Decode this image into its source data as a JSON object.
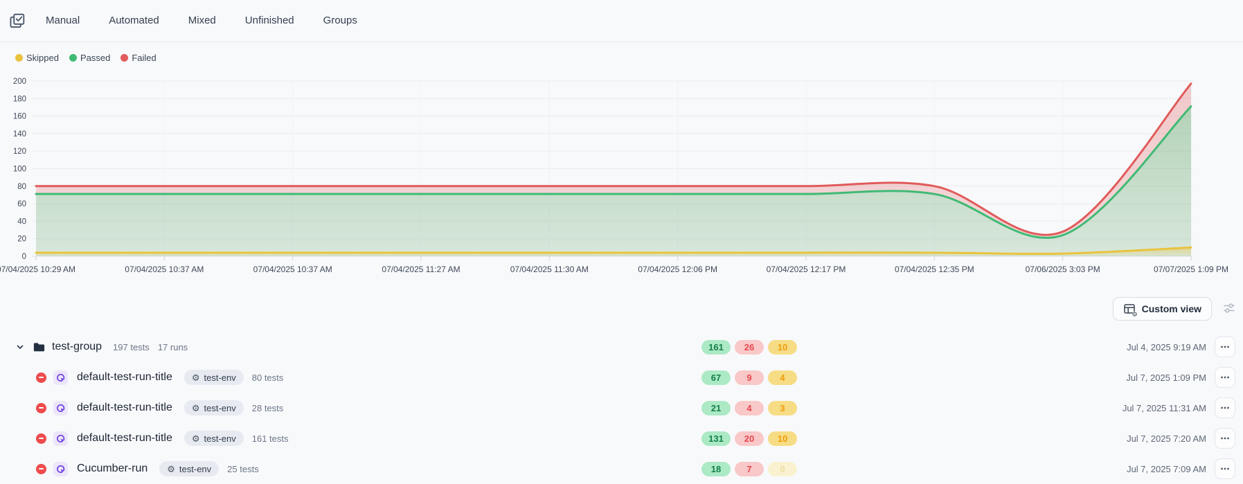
{
  "header": {
    "icon": "tasks-check-icon",
    "tabs": [
      "Manual",
      "Automated",
      "Mixed",
      "Unfinished",
      "Groups"
    ]
  },
  "legend": [
    {
      "label": "Skipped",
      "color": "#e9c33f"
    },
    {
      "label": "Passed",
      "color": "#3fba74"
    },
    {
      "label": "Failed",
      "color": "#e15b5b"
    }
  ],
  "chart_data": {
    "type": "area",
    "stacked": true,
    "smooth": true,
    "categories": [
      "07/04/2025 10:29 AM",
      "07/04/2025 10:37 AM",
      "07/04/2025 10:37 AM",
      "07/04/2025 11:27 AM",
      "07/04/2025 11:30 AM",
      "07/04/2025 12:06 PM",
      "07/04/2025 12:17 PM",
      "07/04/2025 12:35 PM",
      "07/06/2025 3:03 PM",
      "07/07/2025 1:09 PM"
    ],
    "series": [
      {
        "name": "Skipped",
        "color": "#e9c33f",
        "values": [
          4,
          4,
          4,
          4,
          4,
          4,
          4,
          4,
          3,
          10
        ]
      },
      {
        "name": "Passed",
        "color": "#3fba74",
        "values": [
          67,
          67,
          67,
          67,
          67,
          67,
          67,
          67,
          21,
          161
        ]
      },
      {
        "name": "Failed",
        "color": "#e15b5b",
        "values": [
          9,
          9,
          9,
          9,
          9,
          9,
          9,
          9,
          4,
          26
        ]
      }
    ],
    "ylim": [
      0,
      200
    ],
    "yticks": [
      0,
      20,
      40,
      60,
      80,
      100,
      120,
      140,
      160,
      180,
      200
    ],
    "grid": true,
    "legend_position": "top-left"
  },
  "toolbar": {
    "custom_view": {
      "label": "Custom view",
      "icon": "table-gear-icon"
    },
    "filter_icon": "sliders-icon"
  },
  "list": {
    "group": {
      "name": "test-group",
      "tests": "197 tests",
      "runs": "17 runs",
      "passed": 161,
      "failed": 26,
      "skipped": 10,
      "date": "Jul 4, 2025 9:19 AM"
    },
    "items": [
      {
        "title": "default-test-run-title",
        "env": "test-env",
        "tests": "80 tests",
        "passed": 67,
        "failed": 9,
        "skipped": 4,
        "date": "Jul 7, 2025 1:09 PM"
      },
      {
        "title": "default-test-run-title",
        "env": "test-env",
        "tests": "28 tests",
        "passed": 21,
        "failed": 4,
        "skipped": 3,
        "date": "Jul 7, 2025 11:31 AM"
      },
      {
        "title": "default-test-run-title",
        "env": "test-env",
        "tests": "161 tests",
        "passed": 131,
        "failed": 20,
        "skipped": 10,
        "date": "Jul 7, 2025 7:20 AM"
      },
      {
        "title": "Cucumber-run",
        "env": "test-env",
        "tests": "25 tests",
        "passed": 18,
        "failed": 7,
        "skipped": 0,
        "date": "Jul 7, 2025 7:09 AM"
      }
    ]
  },
  "colors": {
    "badge_passed_bg": "#ace9c5",
    "badge_passed_text": "#148049",
    "badge_failed_bg": "#f9c8c8",
    "badge_failed_text": "#e5494f",
    "badge_skipped_bg": "#f6dc85",
    "badge_skipped_text": "#ee9d0a",
    "badge_skipped_faded_bg": "#faf1d0",
    "badge_skipped_faded_text": "#ecdca2",
    "status_stopped": "#ee4b4c",
    "automation_purple": "#6d3bdf"
  }
}
